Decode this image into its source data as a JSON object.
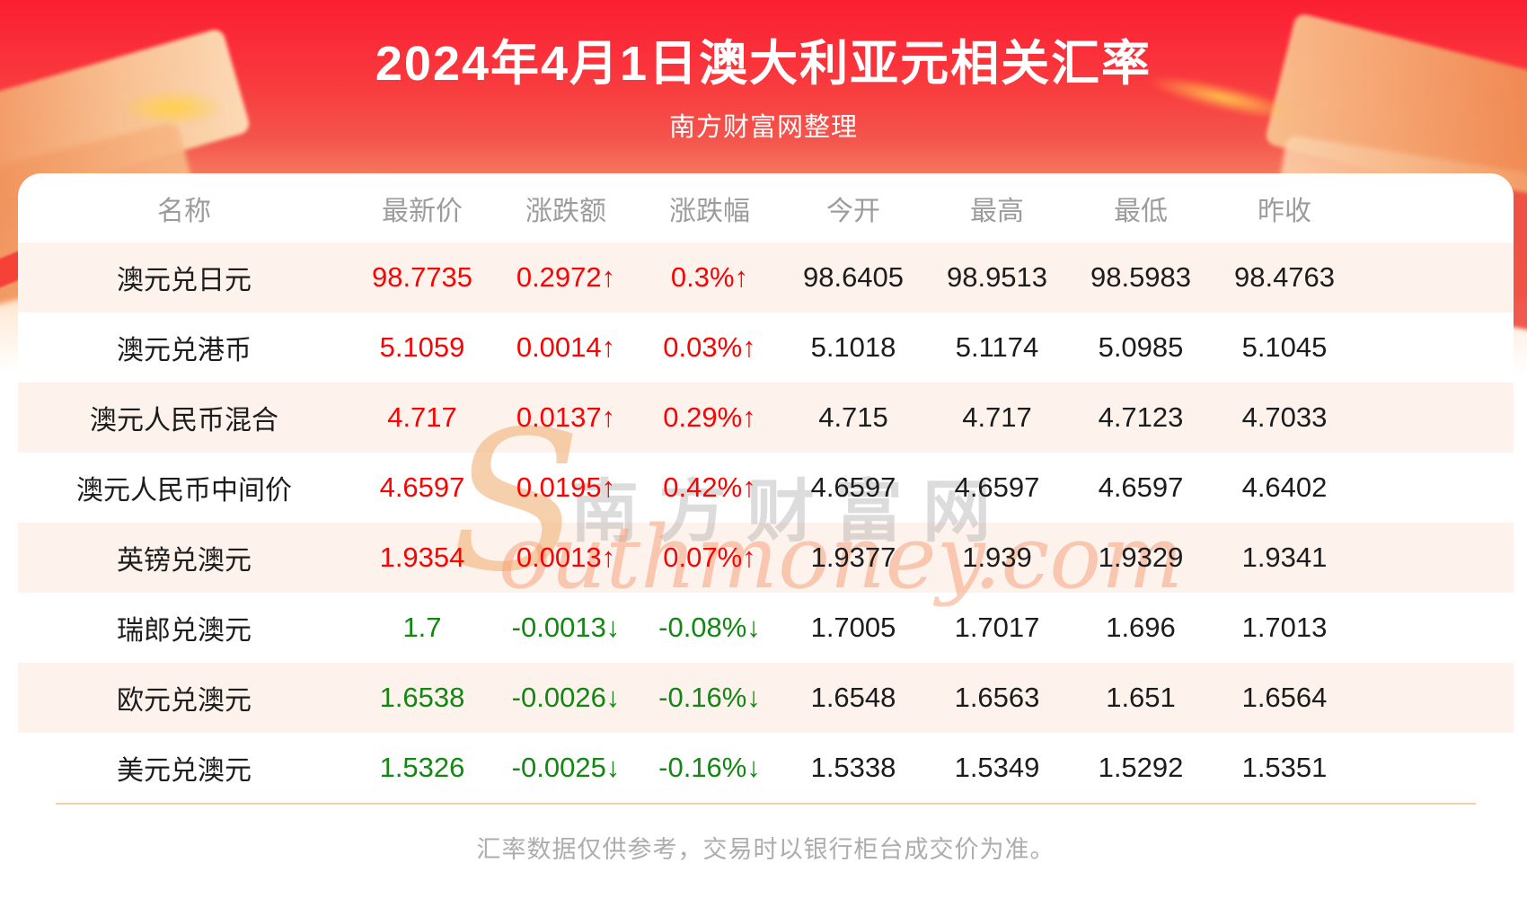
{
  "header": {
    "title": "2024年4月1日澳大利亚元相关汇率",
    "subtitle": "南方财富网整理"
  },
  "table": {
    "columns": [
      "名称",
      "最新价",
      "涨跌额",
      "涨跌幅",
      "今开",
      "最高",
      "最低",
      "昨收"
    ],
    "rows": [
      {
        "name": "澳元兑日元",
        "latest": "98.7735",
        "change": "0.2972↑",
        "change_pct": "0.3%↑",
        "open": "98.6405",
        "high": "98.9513",
        "low": "98.5983",
        "prev_close": "98.4763",
        "direction": "up"
      },
      {
        "name": "澳元兑港币",
        "latest": "5.1059",
        "change": "0.0014↑",
        "change_pct": "0.03%↑",
        "open": "5.1018",
        "high": "5.1174",
        "low": "5.0985",
        "prev_close": "5.1045",
        "direction": "up"
      },
      {
        "name": "澳元人民币混合",
        "latest": "4.717",
        "change": "0.0137↑",
        "change_pct": "0.29%↑",
        "open": "4.715",
        "high": "4.717",
        "low": "4.7123",
        "prev_close": "4.7033",
        "direction": "up"
      },
      {
        "name": "澳元人民币中间价",
        "latest": "4.6597",
        "change": "0.0195↑",
        "change_pct": "0.42%↑",
        "open": "4.6597",
        "high": "4.6597",
        "low": "4.6597",
        "prev_close": "4.6402",
        "direction": "up"
      },
      {
        "name": "英镑兑澳元",
        "latest": "1.9354",
        "change": "0.0013↑",
        "change_pct": "0.07%↑",
        "open": "1.9377",
        "high": "1.939",
        "low": "1.9329",
        "prev_close": "1.9341",
        "direction": "up"
      },
      {
        "name": "瑞郎兑澳元",
        "latest": "1.7",
        "change": "-0.0013↓",
        "change_pct": "-0.08%↓",
        "open": "1.7005",
        "high": "1.7017",
        "low": "1.696",
        "prev_close": "1.7013",
        "direction": "down"
      },
      {
        "name": "欧元兑澳元",
        "latest": "1.6538",
        "change": "-0.0026↓",
        "change_pct": "-0.16%↓",
        "open": "1.6548",
        "high": "1.6563",
        "low": "1.651",
        "prev_close": "1.6564",
        "direction": "down"
      },
      {
        "name": "美元兑澳元",
        "latest": "1.5326",
        "change": "-0.0025↓",
        "change_pct": "-0.16%↓",
        "open": "1.5338",
        "high": "1.5349",
        "low": "1.5292",
        "prev_close": "1.5351",
        "direction": "down"
      }
    ]
  },
  "watermark": {
    "s": "S",
    "cn": "南方财富网",
    "en": "outhmoney.com"
  },
  "footer": {
    "note": "汇率数据仅供参考，交易时以银行柜台成交价为准。"
  },
  "colors": {
    "banner_red": "#fb1e32",
    "up": "#f50505",
    "down": "#138713",
    "stripe": "#fdf2ec"
  }
}
